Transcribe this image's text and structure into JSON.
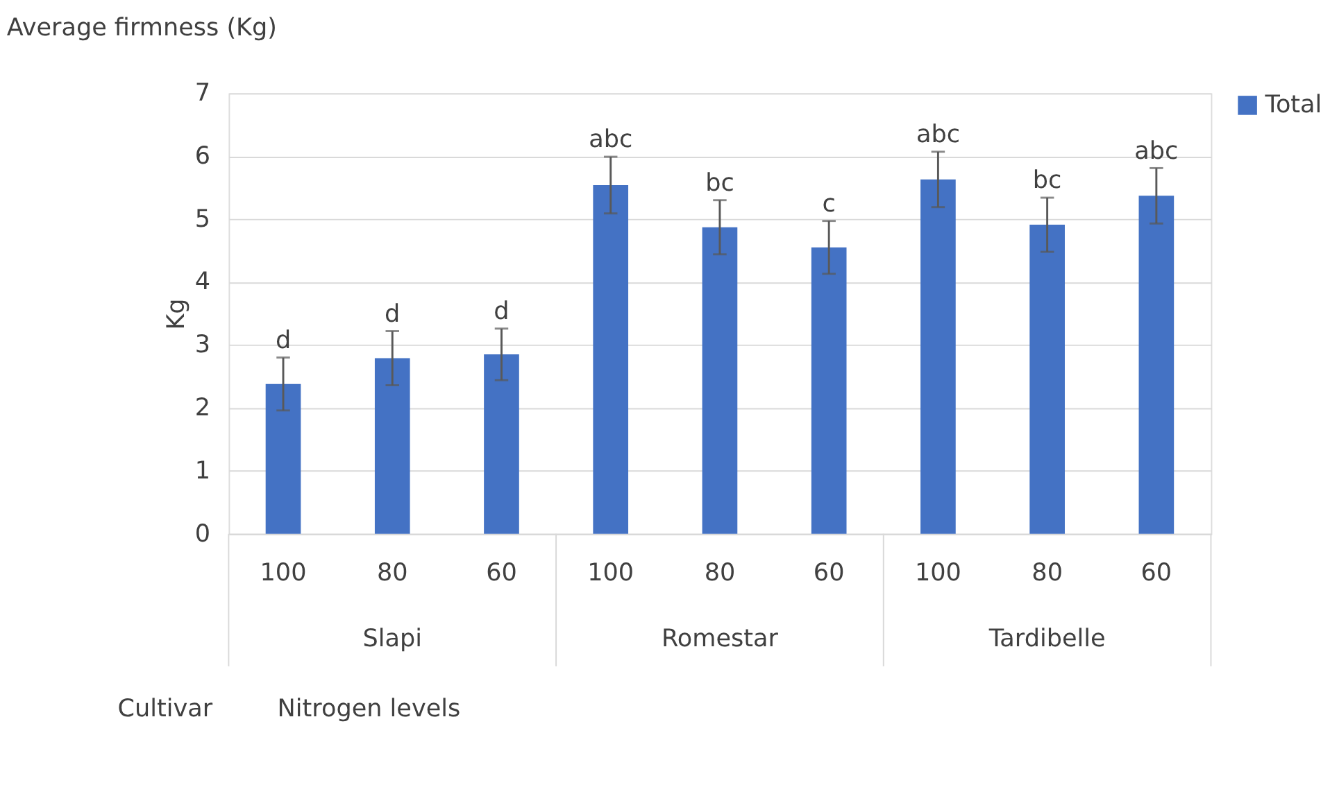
{
  "chart_data": {
    "type": "bar",
    "title": "Average firmness (Kg)",
    "ylabel": "Kg",
    "categories": [
      "100",
      "80",
      "60",
      "100",
      "80",
      "60",
      "100",
      "80",
      "60"
    ],
    "series": [
      {
        "name": "Total",
        "color": "#4472c4",
        "values": [
          2.38,
          2.79,
          2.85,
          5.54,
          4.87,
          4.55,
          5.63,
          4.91,
          5.37
        ],
        "errors": [
          0.42,
          0.43,
          0.41,
          0.45,
          0.43,
          0.42,
          0.44,
          0.43,
          0.44
        ],
        "value_labels": [
          "d",
          "d",
          "d",
          "abc",
          "bc",
          "c",
          "abc",
          "bc",
          "abc"
        ]
      }
    ],
    "annotations": [
      "Slapi",
      "Romestar",
      "Tardibelle",
      "Cultivar",
      "Nitrogen levels"
    ],
    "ylim": [
      0,
      7
    ],
    "yticks": [
      0,
      1,
      2,
      3,
      4,
      5,
      6,
      7
    ],
    "grid": "y",
    "legend": "right"
  }
}
